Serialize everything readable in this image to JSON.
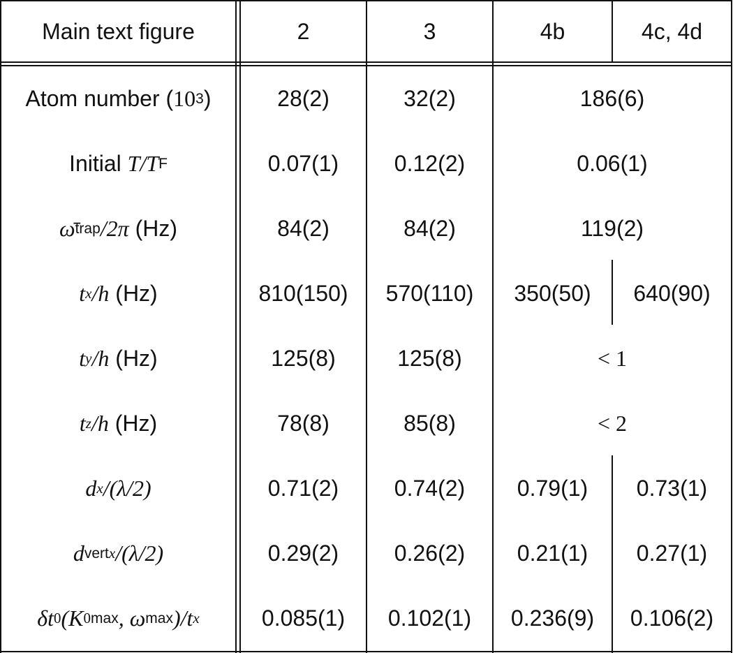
{
  "header": [
    "Main text figure",
    "2",
    "3",
    "4b",
    "4c, 4d"
  ],
  "rows": [
    {
      "label": [
        {
          "text": "Atom number (",
          "style": "r"
        },
        {
          "text": "10",
          "style": "m"
        },
        {
          "text": "3",
          "style": "sup"
        },
        {
          "text": ")",
          "style": "r"
        }
      ],
      "values": [
        "28(2)",
        "32(2)",
        "186(6)"
      ]
    },
    {
      "label": [
        {
          "text": "Initial ",
          "style": "r"
        },
        {
          "text": "T/T",
          "style": "i"
        },
        {
          "text": "F",
          "style": "sub"
        }
      ],
      "values": [
        "0.07(1)",
        "0.12(2)",
        "0.06(1)"
      ]
    },
    {
      "label": [
        {
          "text": "ω̄",
          "style": "i"
        },
        {
          "text": "trap",
          "style": "sub"
        },
        {
          "text": "/2π",
          "style": "i"
        },
        {
          "text": " (Hz)",
          "style": "r"
        }
      ],
      "values": [
        "84(2)",
        "84(2)",
        "119(2)"
      ]
    },
    {
      "label": [
        {
          "text": "t",
          "style": "i"
        },
        {
          "text": "x",
          "style": "subi"
        },
        {
          "text": "/h",
          "style": "i"
        },
        {
          "text": " (Hz)",
          "style": "r"
        }
      ],
      "values": [
        "810(150)",
        "570(110)",
        "350(50)",
        "640(90)"
      ]
    },
    {
      "label": [
        {
          "text": "t",
          "style": "i"
        },
        {
          "text": "y",
          "style": "subi"
        },
        {
          "text": "/h",
          "style": "i"
        },
        {
          "text": " (Hz)",
          "style": "r"
        }
      ],
      "values": [
        "125(8)",
        "125(8)",
        "< 1"
      ]
    },
    {
      "label": [
        {
          "text": "t",
          "style": "i"
        },
        {
          "text": "z",
          "style": "subi"
        },
        {
          "text": "/h",
          "style": "i"
        },
        {
          "text": " (Hz)",
          "style": "r"
        }
      ],
      "values": [
        "78(8)",
        "85(8)",
        "< 2"
      ]
    },
    {
      "label": [
        {
          "text": "d",
          "style": "i"
        },
        {
          "text": "x",
          "style": "subi"
        },
        {
          "text": "/(λ/2)",
          "style": "i"
        }
      ],
      "values": [
        "0.71(2)",
        "0.74(2)",
        "0.79(1)",
        "0.73(1)"
      ]
    },
    {
      "label": [
        {
          "text": "d",
          "style": "i"
        },
        {
          "text": "vert",
          "style": "sup"
        },
        {
          "text": "x",
          "style": "subi"
        },
        {
          "text": "/(λ/2)",
          "style": "i"
        }
      ],
      "values": [
        "0.29(2)",
        "0.26(2)",
        "0.21(1)",
        "0.27(1)"
      ]
    },
    {
      "label": [
        {
          "text": "δt",
          "style": "i"
        },
        {
          "text": "0",
          "style": "subm"
        },
        {
          "text": "(K",
          "style": "i"
        },
        {
          "text": "0",
          "style": "subm"
        },
        {
          "text": "max",
          "style": "sup"
        },
        {
          "text": ", ω",
          "style": "i"
        },
        {
          "text": "max",
          "style": "sup"
        },
        {
          "text": ")/t",
          "style": "i"
        },
        {
          "text": "x",
          "style": "subi"
        }
      ],
      "values": [
        "0.085(1)",
        "0.102(1)",
        "0.236(9)",
        "0.106(2)"
      ]
    }
  ]
}
